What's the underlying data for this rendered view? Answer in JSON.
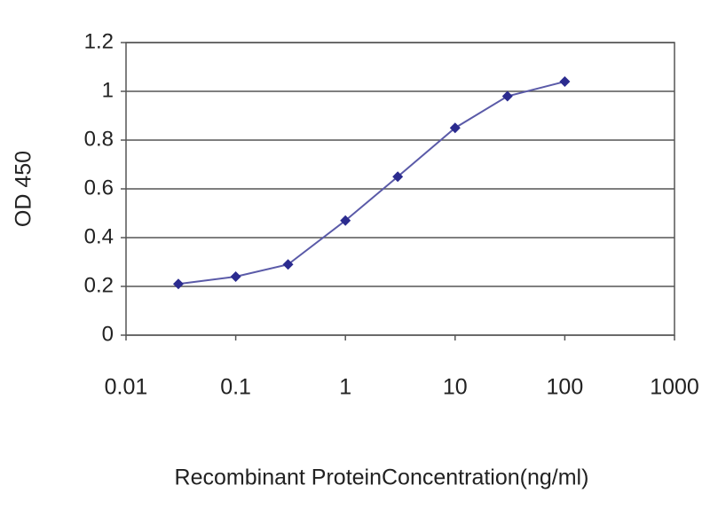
{
  "chart_data": {
    "type": "line",
    "x": [
      0.03,
      0.1,
      0.3,
      1,
      3,
      10,
      30,
      100
    ],
    "values": [
      0.21,
      0.24,
      0.29,
      0.47,
      0.65,
      0.85,
      0.98,
      1.04
    ],
    "color": "#2b2b8f",
    "xscale": "log",
    "xlim": [
      0.01,
      1000
    ],
    "xticks": [
      0.01,
      0.1,
      1,
      10,
      100,
      1000
    ],
    "ylim": [
      0,
      1.2
    ],
    "yticks": [
      0,
      0.2,
      0.4,
      0.6,
      0.8,
      1,
      1.2
    ],
    "grid": true,
    "xlabel": "Recombinant ProteinConcentration(ng/ml)",
    "ylabel": "OD 450"
  }
}
